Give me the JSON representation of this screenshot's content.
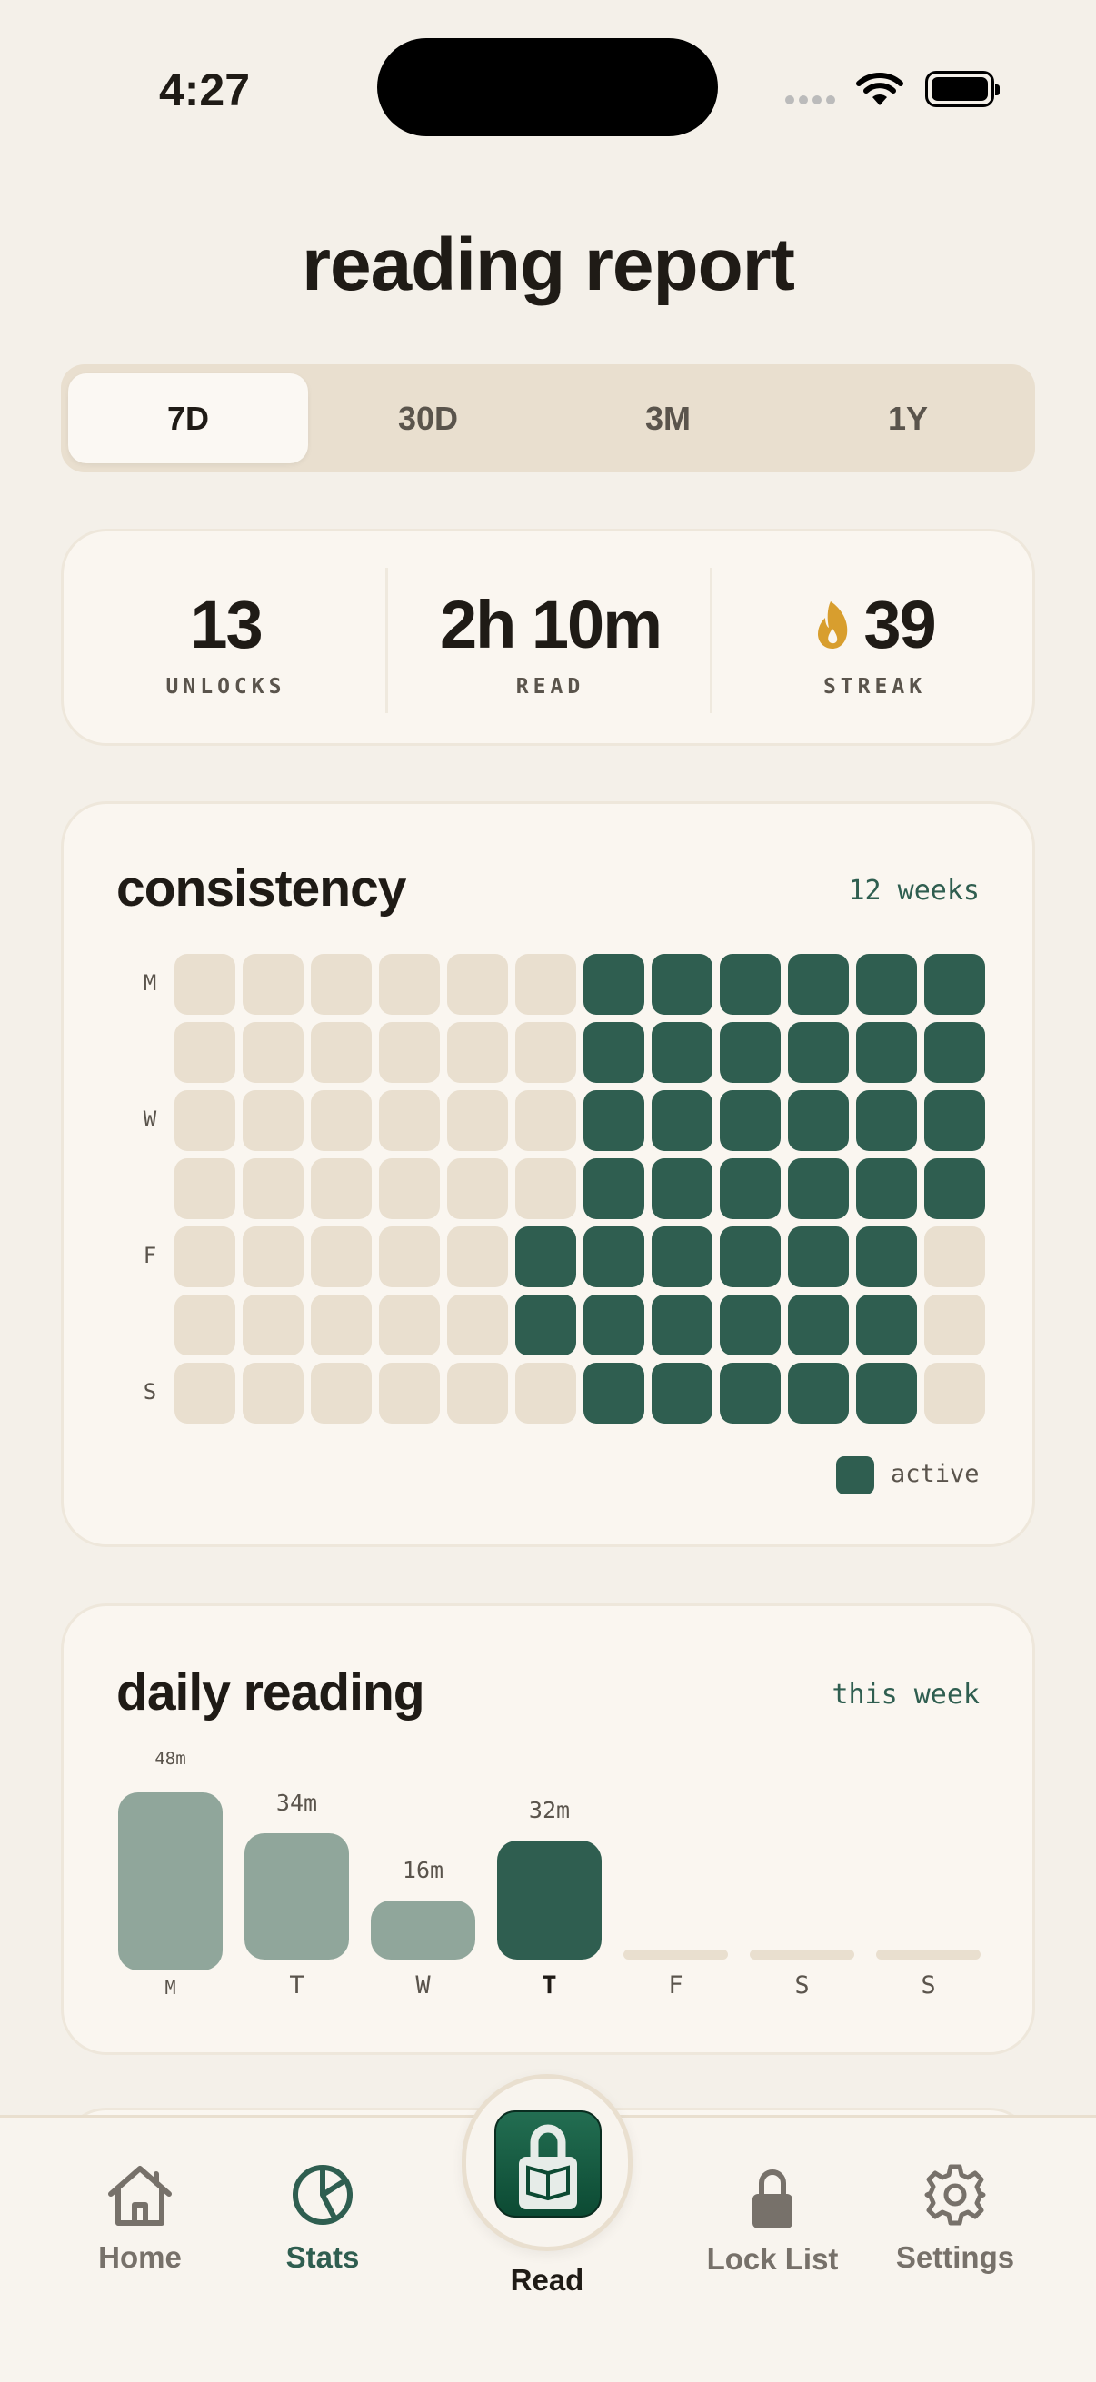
{
  "status_bar": {
    "time": "4:27"
  },
  "page_title": "reading report",
  "range_tabs": [
    {
      "label": "7D",
      "selected": true
    },
    {
      "label": "30D",
      "selected": false
    },
    {
      "label": "3M",
      "selected": false
    },
    {
      "label": "1Y",
      "selected": false
    }
  ],
  "stats": [
    {
      "value": "13",
      "label": "UNLOCKS"
    },
    {
      "value": "2h 10m",
      "label": "READ"
    },
    {
      "value": "39",
      "label": "STREAK",
      "icon": "flame-icon"
    }
  ],
  "consistency": {
    "title": "consistency",
    "period": "12 weeks",
    "row_labels": [
      "M",
      "",
      "W",
      "",
      "F",
      "",
      "S"
    ],
    "grid": [
      [
        0,
        0,
        0,
        0,
        0,
        0,
        1,
        1,
        1,
        1,
        1,
        1
      ],
      [
        0,
        0,
        0,
        0,
        0,
        0,
        1,
        1,
        1,
        1,
        1,
        1
      ],
      [
        0,
        0,
        0,
        0,
        0,
        0,
        1,
        1,
        1,
        1,
        1,
        1
      ],
      [
        0,
        0,
        0,
        0,
        0,
        0,
        1,
        1,
        1,
        1,
        1,
        1
      ],
      [
        0,
        0,
        0,
        0,
        0,
        1,
        1,
        1,
        1,
        1,
        1,
        0
      ],
      [
        0,
        0,
        0,
        0,
        0,
        1,
        1,
        1,
        1,
        1,
        1,
        0
      ],
      [
        0,
        0,
        0,
        0,
        0,
        0,
        1,
        1,
        1,
        1,
        1,
        0
      ]
    ],
    "legend_label": "active"
  },
  "daily_reading": {
    "title": "daily reading",
    "period": "this week",
    "chart_data": {
      "type": "bar",
      "categories": [
        "M",
        "T",
        "W",
        "T",
        "F",
        "S",
        "S"
      ],
      "values": [
        48,
        34,
        16,
        32,
        0,
        0,
        0
      ],
      "value_labels": [
        "48m",
        "34m",
        "16m",
        "32m",
        "",
        "",
        ""
      ],
      "unit": "minutes",
      "highlight_index": 3
    }
  },
  "tab_bar": {
    "items": [
      {
        "label": "Home",
        "icon": "home-icon",
        "active": false
      },
      {
        "label": "Stats",
        "icon": "pie-chart-icon",
        "active": true
      },
      {
        "label": "Read",
        "icon": "lock-book-icon",
        "active": false
      },
      {
        "label": "Lock List",
        "icon": "lock-icon",
        "active": false
      },
      {
        "label": "Settings",
        "icon": "gear-icon",
        "active": false
      }
    ]
  },
  "colors": {
    "background": "#f4f0e9",
    "card": "#faf6f0",
    "accent": "#2f5e50",
    "inactive_cell": "#e9dfcf",
    "past_bar": "#90a69b",
    "flame": "#d89e2e"
  }
}
